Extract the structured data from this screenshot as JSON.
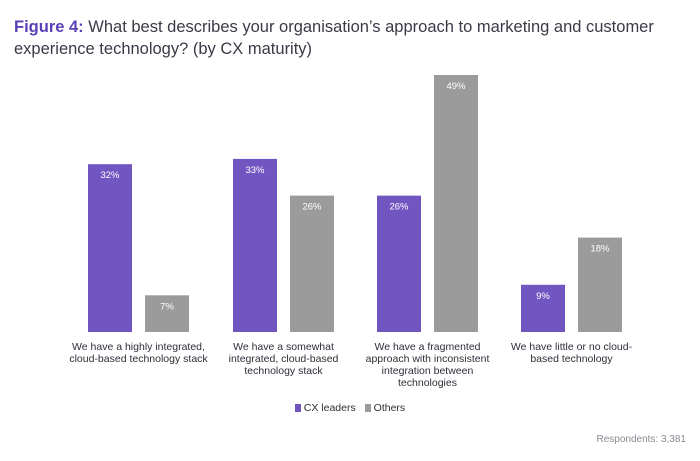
{
  "title": {
    "prefix": "Figure 4:",
    "text": "What best describes your organisation’s approach to marketing and customer experience technology? (by CX maturity)"
  },
  "footnote": "Respondents: 3,381",
  "colors": {
    "cx_leaders": "#7156c2",
    "others": "#9b9b9b"
  },
  "chart_data": {
    "type": "bar",
    "title": "What best describes your organisation’s approach to marketing and customer experience technology? (by CX maturity)",
    "categories": [
      [
        "We have a highly integrated,",
        "cloud-based technology stack"
      ],
      [
        "We have a somewhat",
        "integrated, cloud-based",
        "technology stack"
      ],
      [
        "We have a fragmented",
        "approach with inconsistent",
        "integration between",
        "technologies"
      ],
      [
        "We have little or no cloud-",
        "based technology"
      ]
    ],
    "series": [
      {
        "name": "CX leaders",
        "values": [
          32,
          33,
          26,
          9
        ],
        "labels": [
          "32%",
          "33%",
          "26%",
          "9%"
        ]
      },
      {
        "name": "Others",
        "values": [
          7,
          26,
          49,
          18
        ],
        "labels": [
          "7%",
          "26%",
          "49%",
          "18%"
        ]
      }
    ],
    "unit": "%",
    "ylim": [
      0,
      49
    ],
    "grid": false,
    "legend_position": "bottom-center"
  }
}
